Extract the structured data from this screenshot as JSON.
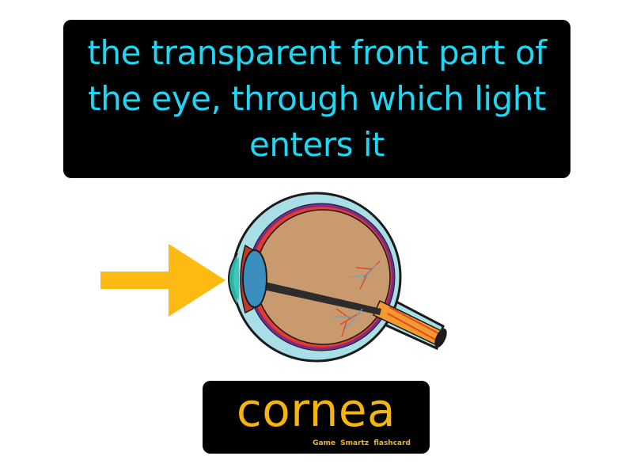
{
  "definition": {
    "text": "the transparent front part of the eye, through which light enters it",
    "text_color": "#1fd7f3"
  },
  "term": {
    "label": "cornea",
    "text_color": "#f6b50e"
  },
  "brand": {
    "label": "Game Smartz flashcard"
  },
  "illustration": {
    "subject": "eye-cross-section-icon",
    "pointer": "arrow-right-icon",
    "arrow_color": "#fcba12"
  }
}
